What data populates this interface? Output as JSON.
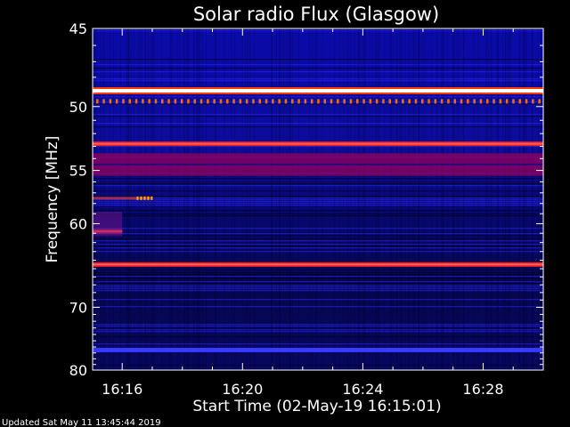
{
  "chart_data": {
    "type": "heatmap",
    "title": "Solar radio Flux (Glasgow)",
    "xlabel": "Start Time (02-May-19 16:15:01)",
    "ylabel": "Frequency [MHz]",
    "x_unit": "time",
    "xlim": [
      "16:15:01",
      "16:30:00"
    ],
    "ylim": [
      45,
      80
    ],
    "y_inverted": true,
    "x_ticks": [
      "16:16",
      "16:20",
      "16:24",
      "16:28"
    ],
    "x_tick_minutes": [
      16,
      20,
      24,
      28
    ],
    "y_ticks": [
      45,
      50,
      55,
      60,
      70,
      80
    ],
    "y_scale": "reciprocal",
    "colormap": [
      "#000014",
      "#00008c",
      "#2a2aff",
      "#ff0000",
      "#ffffff"
    ],
    "background_color": "#000000",
    "features": [
      {
        "freq": 48.9,
        "intensity": "high",
        "span": "full"
      },
      {
        "freq": 49.6,
        "intensity": "dotted-red",
        "span": "full"
      },
      {
        "freq": 52.8,
        "intensity": "red",
        "span": "full"
      },
      {
        "freq": 54.0,
        "intensity": "dark-red-band",
        "span": "full"
      },
      {
        "freq": 55.0,
        "intensity": "dark-red-band",
        "span": "full"
      },
      {
        "freq": 57.5,
        "intensity": "red-dashes",
        "span": "16:15-16:17"
      },
      {
        "freq": 60.8,
        "intensity": "red",
        "span": "16:15-16:16"
      },
      {
        "freq": 64.5,
        "intensity": "red",
        "span": "full"
      },
      {
        "freq": 76.5,
        "intensity": "bright-blue",
        "span": "full"
      }
    ]
  },
  "footer": {
    "updated": "Updated Sat May 11 13:45:44 2019"
  }
}
